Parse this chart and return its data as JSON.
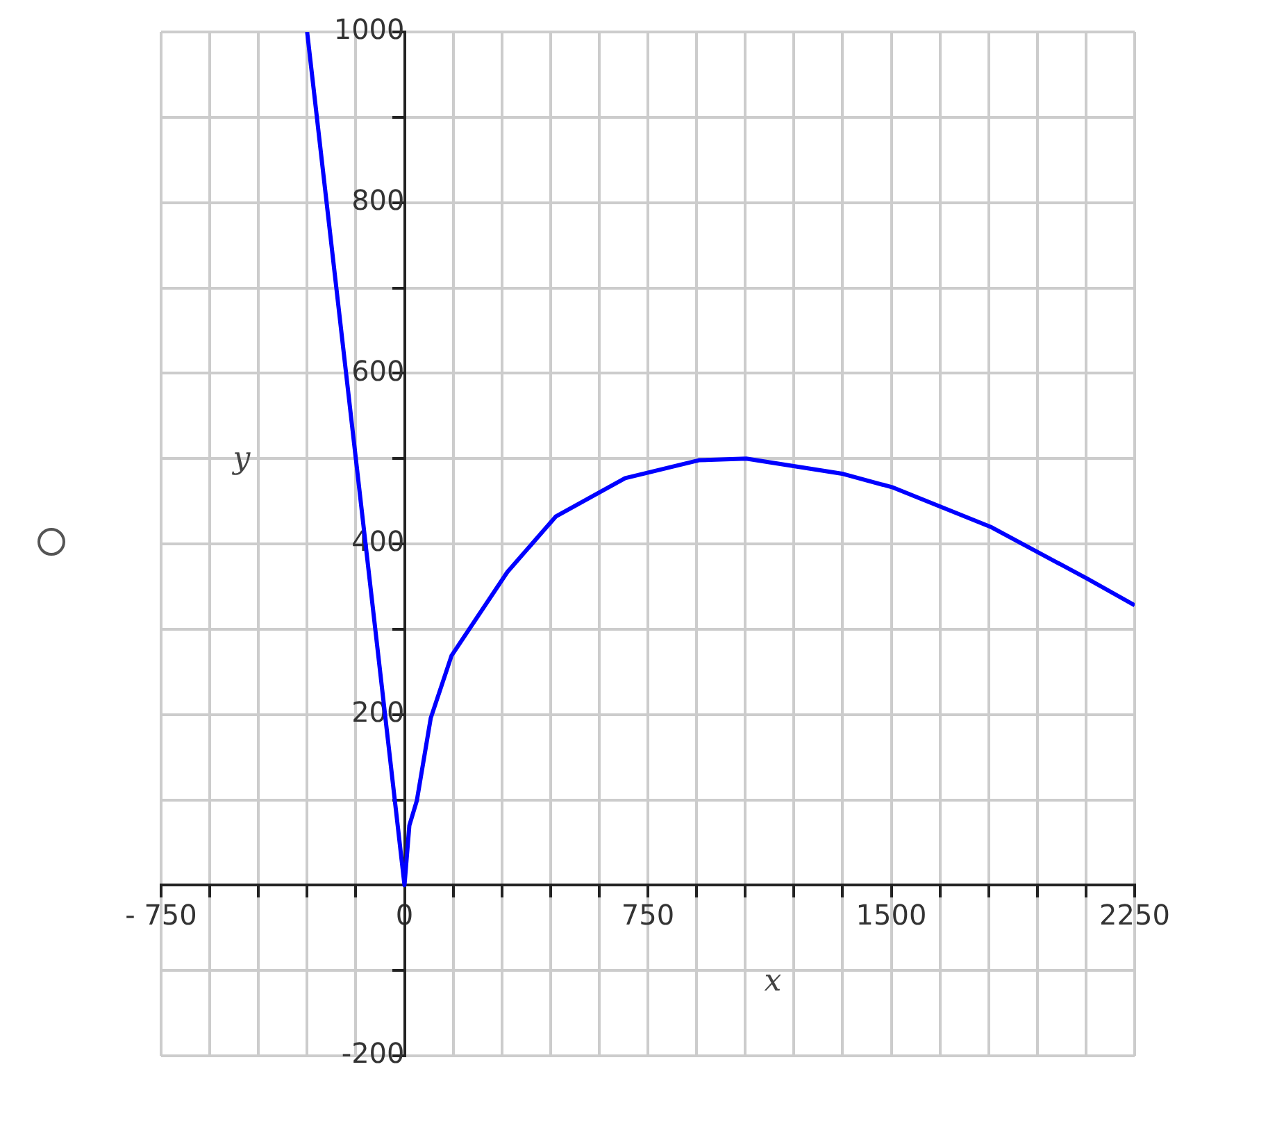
{
  "chart_data": {
    "type": "line",
    "xlabel": "x",
    "ylabel": "y",
    "color": "#0000ff",
    "marker": "none",
    "line_style": "solid",
    "grid": true,
    "x": [
      -300,
      -150,
      0,
      15,
      38,
      81,
      145,
      317,
      466,
      680,
      907,
      1053,
      1352,
      1506,
      1806,
      2105,
      2250
    ],
    "values": [
      1000,
      500,
      0,
      70,
      99,
      196,
      269,
      367,
      432,
      477,
      498,
      500,
      482,
      466,
      420,
      359,
      328
    ],
    "xlim": [
      -750,
      2250
    ],
    "xticks": [
      {
        "value": -750,
        "label": "- 750"
      },
      {
        "value": -600,
        "label": null
      },
      {
        "value": -450,
        "label": null
      },
      {
        "value": -300,
        "label": null
      },
      {
        "value": -150,
        "label": null
      },
      0,
      {
        "value": 150,
        "label": null
      },
      {
        "value": 300,
        "label": null
      },
      {
        "value": 450,
        "label": null
      },
      {
        "value": 600,
        "label": null
      },
      750,
      {
        "value": 900,
        "label": null
      },
      {
        "value": 1050,
        "label": null
      },
      {
        "value": 1200,
        "label": null
      },
      {
        "value": 1350,
        "label": null
      },
      1500,
      {
        "value": 1650,
        "label": null
      },
      {
        "value": 1800,
        "label": null
      },
      {
        "value": 1950,
        "label": null
      },
      {
        "value": 2100,
        "label": null
      },
      2250
    ],
    "ylim": [
      -200,
      1000
    ],
    "yticks": [
      -200,
      {
        "value": -100,
        "label": null
      },
      {
        "value": 0,
        "label": null
      },
      {
        "value": 100,
        "label": null
      },
      200,
      {
        "value": 300,
        "label": null
      },
      400,
      {
        "value": 500,
        "label": null
      },
      600,
      {
        "value": 700,
        "label": null
      },
      800,
      {
        "value": 900,
        "label": null
      },
      1000
    ]
  }
}
